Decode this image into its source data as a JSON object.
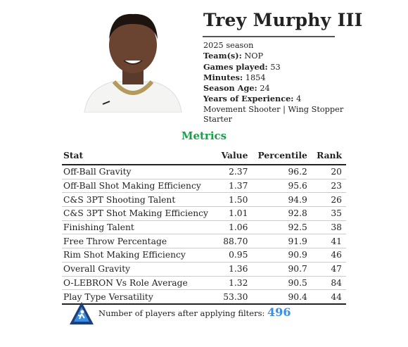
{
  "player": {
    "name": "Trey Murphy III",
    "season": "2025 season",
    "info": [
      {
        "label": "Team(s):",
        "value": "NOP"
      },
      {
        "label": "Games played:",
        "value": "53"
      },
      {
        "label": "Minutes:",
        "value": "1854"
      },
      {
        "label": "Season Age:",
        "value": "24"
      },
      {
        "label": "Years of Experience:",
        "value": "4"
      }
    ],
    "roles": "Movement Shooter | Wing Stopper",
    "status": "Starter"
  },
  "table": {
    "title": "Metrics",
    "columns": [
      "Stat",
      "Value",
      "Percentile",
      "Rank"
    ],
    "rows": [
      [
        "Off-Ball Gravity",
        "2.37",
        "96.2",
        "20"
      ],
      [
        "Off-Ball Shot Making Efficiency",
        "1.37",
        "95.6",
        "23"
      ],
      [
        "C&S 3PT Shooting Talent",
        "1.50",
        "94.9",
        "26"
      ],
      [
        "C&S 3PT Shot Making Efficiency",
        "1.01",
        "92.8",
        "35"
      ],
      [
        "Finishing Talent",
        "1.06",
        "92.5",
        "38"
      ],
      [
        "Free Throw Percentage",
        "88.70",
        "91.9",
        "41"
      ],
      [
        "Rim Shot Making Efficiency",
        "0.95",
        "90.9",
        "46"
      ],
      [
        "Overall Gravity",
        "1.36",
        "90.7",
        "47"
      ],
      [
        "O-LEBRON Vs Role Average",
        "1.32",
        "90.5",
        "84"
      ],
      [
        "Play Type Versatility",
        "53.30",
        "90.4",
        "44"
      ]
    ]
  },
  "footer": {
    "text": "Number of players after applying filters:",
    "count": "496"
  }
}
